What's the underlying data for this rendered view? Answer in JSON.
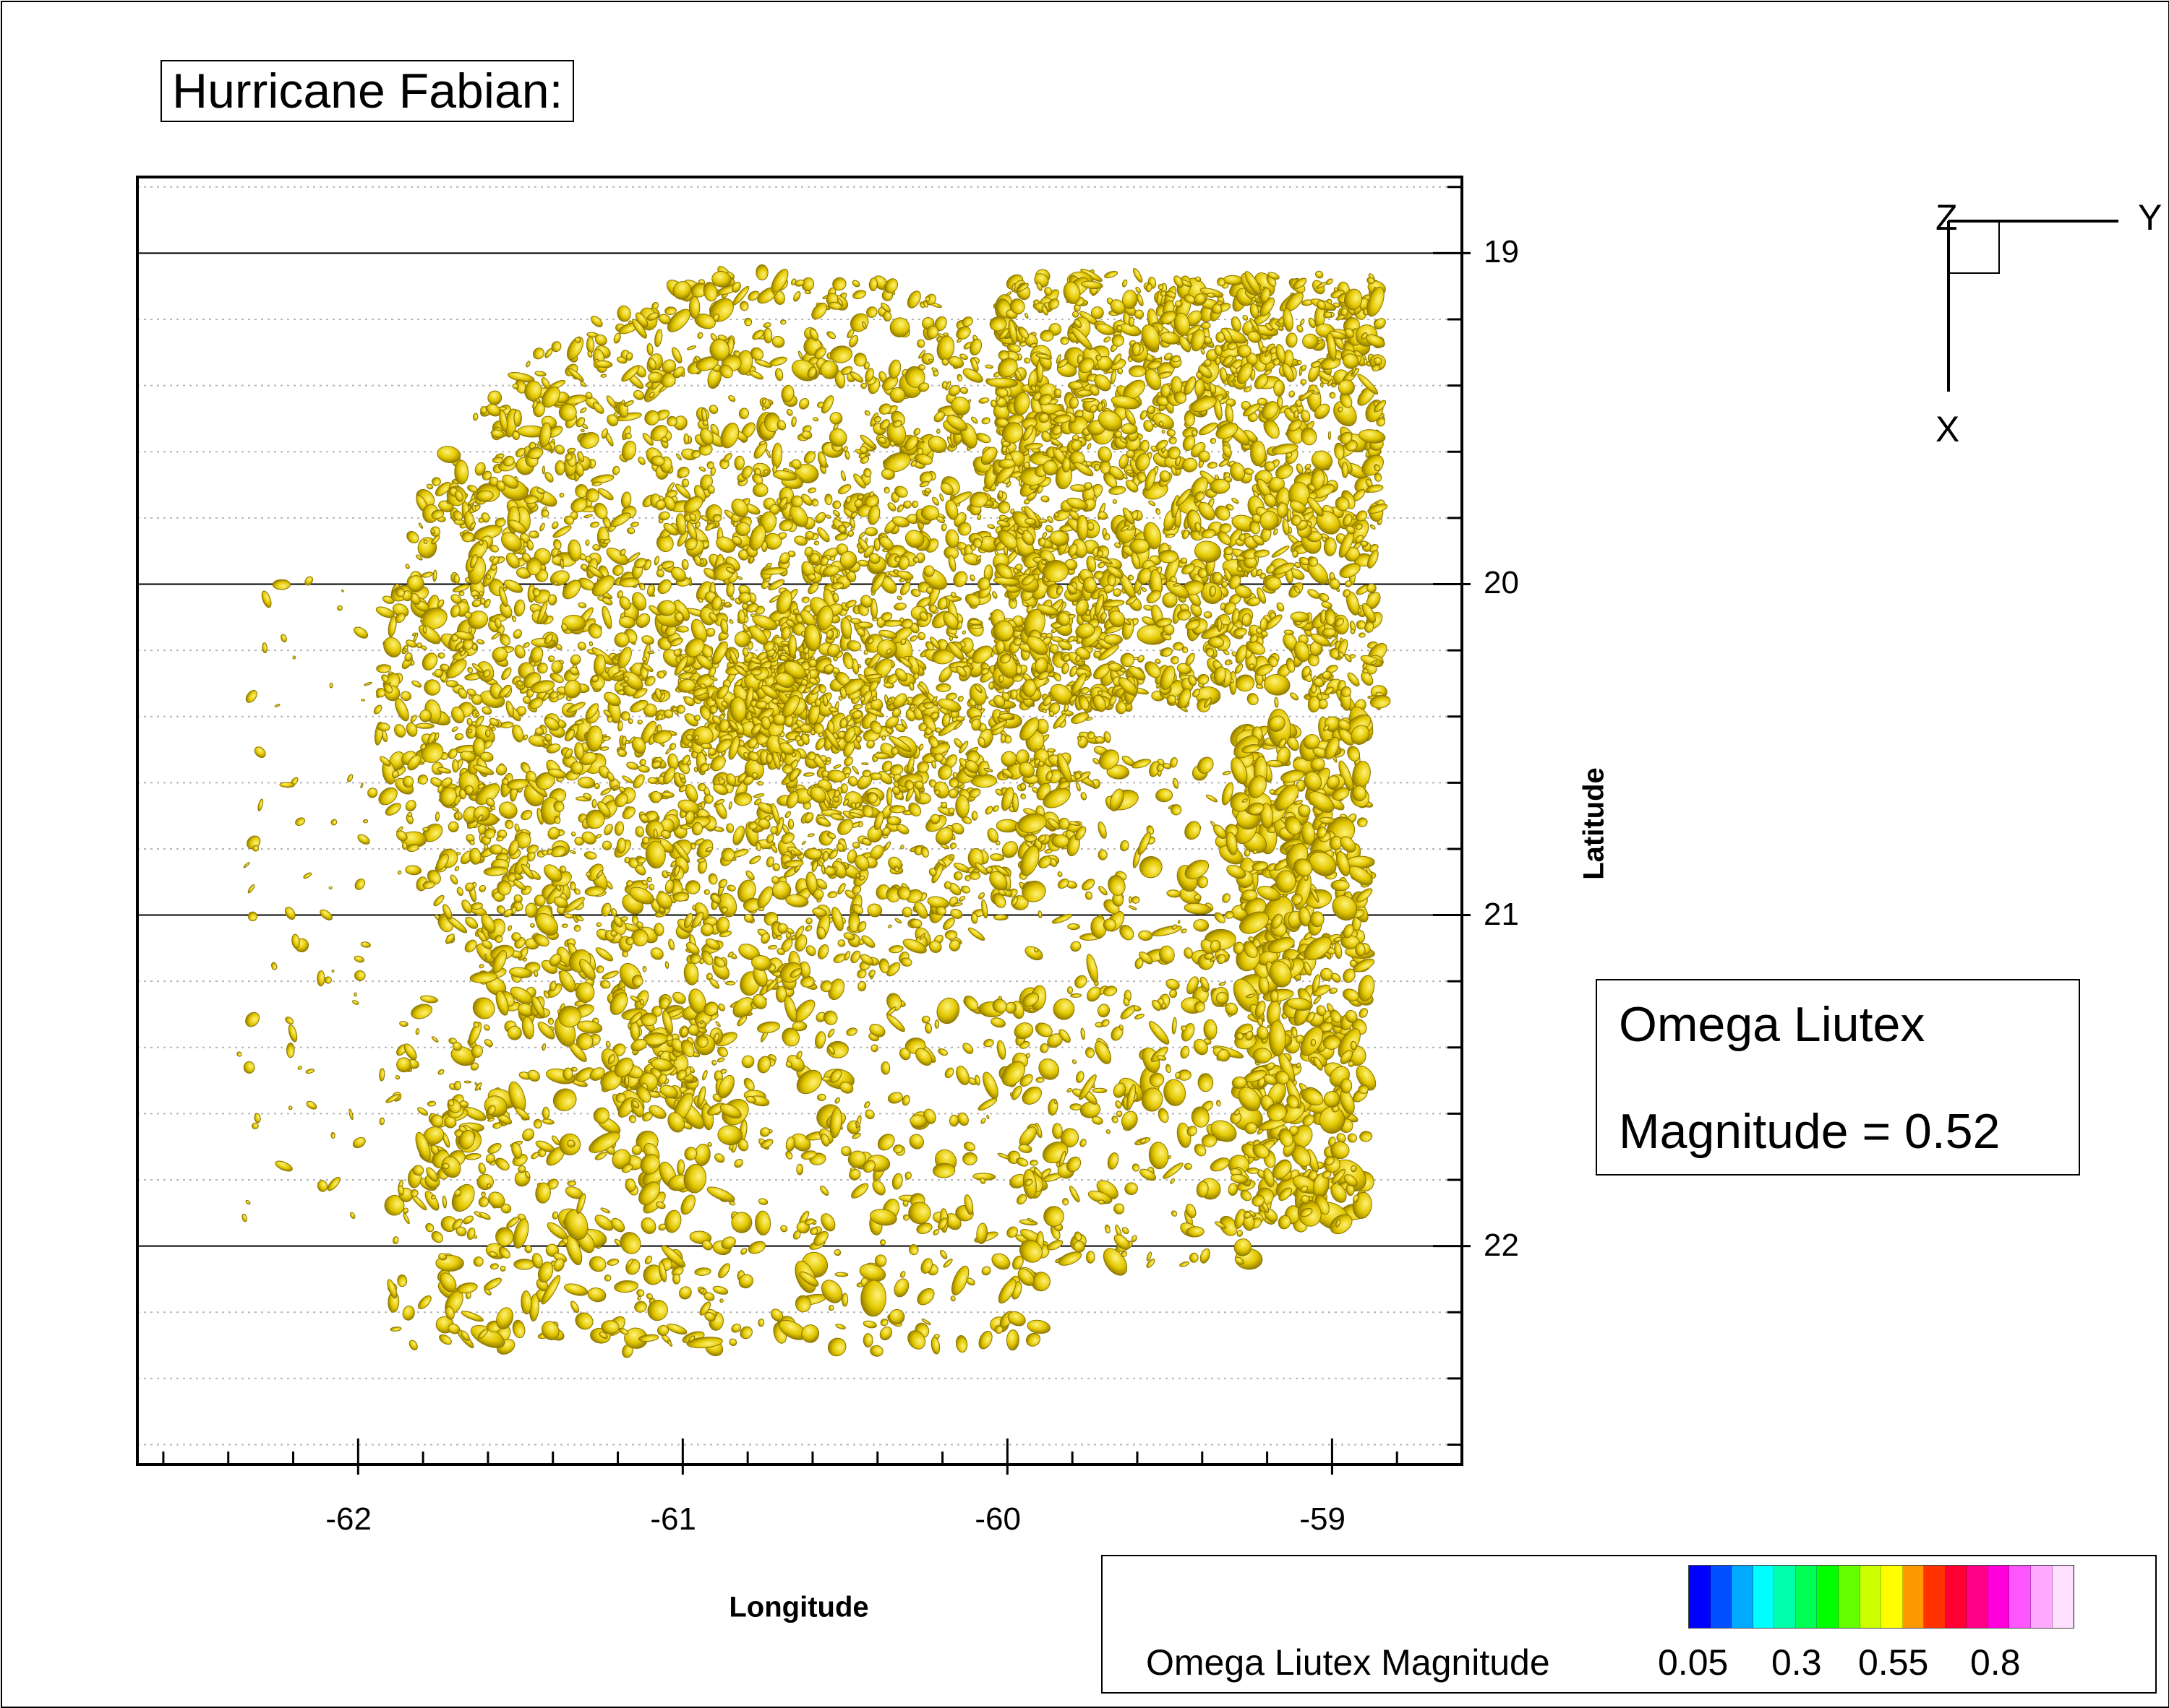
{
  "title": "Hurricane Fabian:",
  "chart_data": {
    "type": "scatter",
    "description_type": "isosurface",
    "xlabel": "Longitude",
    "ylabel": "Latitude",
    "xlim": [
      -62.68,
      -58.6
    ],
    "ylim": [
      22.66,
      18.77
    ],
    "y_inverted": true,
    "x_ticks": [
      -62,
      -61,
      -60,
      -59
    ],
    "x_tick_labels": [
      "-62",
      "-61",
      "-60",
      "-59"
    ],
    "y_ticks": [
      19,
      20,
      21,
      22
    ],
    "y_tick_labels": [
      "19",
      "20",
      "21",
      "22"
    ],
    "grid": true,
    "iso_color": "#e8d000",
    "iso_shadow_color": "#8a7400"
  },
  "iso_label": {
    "line1": "Omega Liutex",
    "line2": "Magnitude = 0.52"
  },
  "axes_triad": {
    "z": "Z",
    "y": "Y",
    "x": "X"
  },
  "legend": {
    "title": "Omega Liutex Magnitude",
    "tick_labels": [
      "0.05",
      "0.3",
      "0.55",
      "0.8"
    ],
    "colors": [
      "#0000ff",
      "#0050ff",
      "#00aaff",
      "#00ffff",
      "#00ffaa",
      "#00ff55",
      "#00ff00",
      "#66ff00",
      "#ccff00",
      "#ffff00",
      "#ff9900",
      "#ff3300",
      "#ff0033",
      "#ff0088",
      "#ff00dd",
      "#ff55ff",
      "#ffaaff",
      "#ffe0ff"
    ]
  }
}
